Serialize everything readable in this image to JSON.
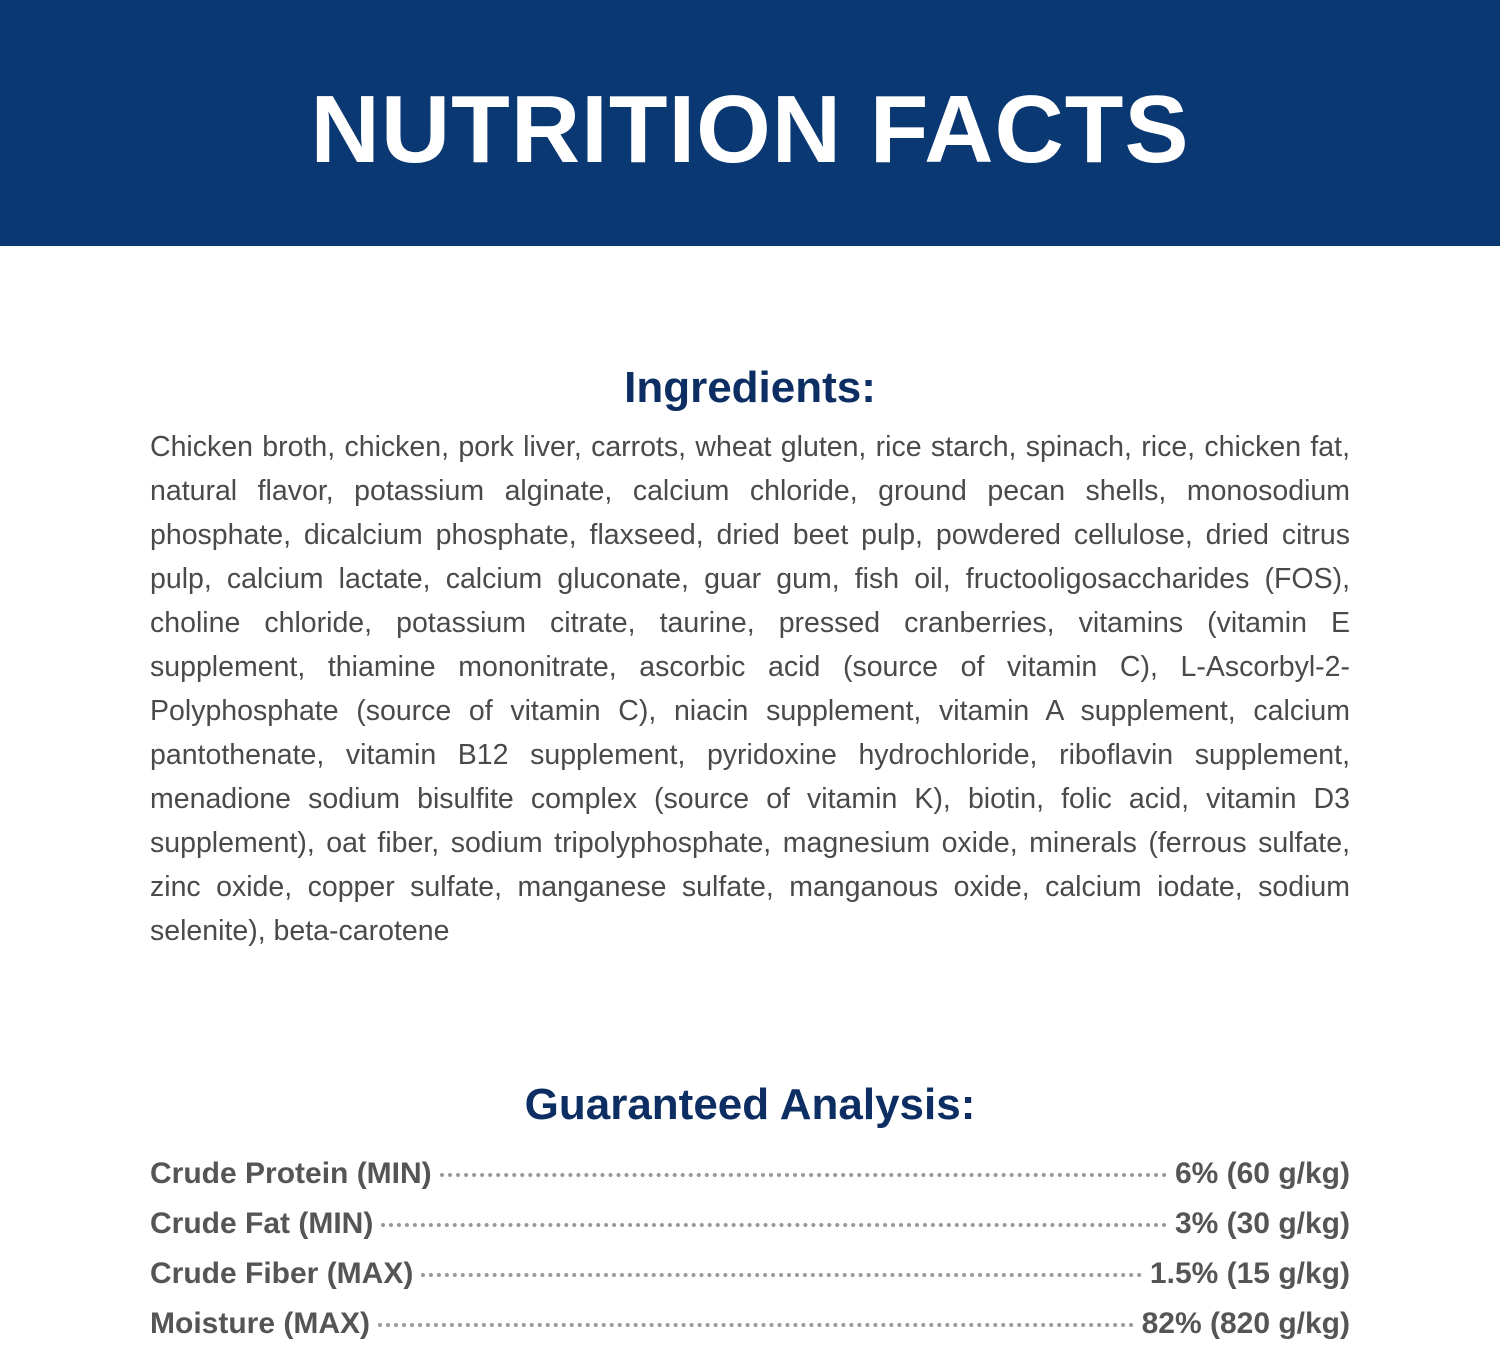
{
  "header": {
    "title": "NUTRITION FACTS"
  },
  "ingredients": {
    "heading": "Ingredients:",
    "text": "Chicken broth, chicken, pork liver, carrots, wheat gluten, rice starch, spinach, rice, chicken fat, natural flavor, potassium alginate, calcium chloride, ground pecan shells, monosodium phosphate, dicalcium phosphate, flaxseed, dried beet pulp, powdered cellulose, dried citrus pulp, calcium lactate, calcium gluconate, guar gum, fish oil, fructooligosaccharides (FOS), choline chloride, potassium citrate, taurine, pressed cranberries, vitamins (vitamin E supplement, thiamine mononitrate, ascorbic acid (source of vitamin C), L-Ascorbyl-2-Polyphosphate (source of vitamin C), niacin supplement, vitamin A supplement, calcium pantothenate, vitamin B12 supplement, pyridoxine hydrochloride, riboflavin supplement, menadione sodium bisulfite complex (source of vitamin K), biotin, folic acid, vitamin D3 supplement), oat fiber, sodium tripolyphosphate, magnesium oxide, minerals (ferrous sulfate, zinc oxide, copper sulfate, manganese sulfate, manganous oxide, calcium iodate, sodium selenite), beta-carotene"
  },
  "analysis": {
    "heading": "Guaranteed Analysis:",
    "rows": [
      [
        "Crude Protein (MIN)",
        "6% (60 g/kg)"
      ],
      [
        "Crude Fat (MIN)",
        "3% (30 g/kg)"
      ],
      [
        "Crude Fiber (MAX)",
        "1.5% (15 g/kg)"
      ],
      [
        "Moisture (MAX)",
        "82% (820 g/kg)"
      ]
    ]
  }
}
